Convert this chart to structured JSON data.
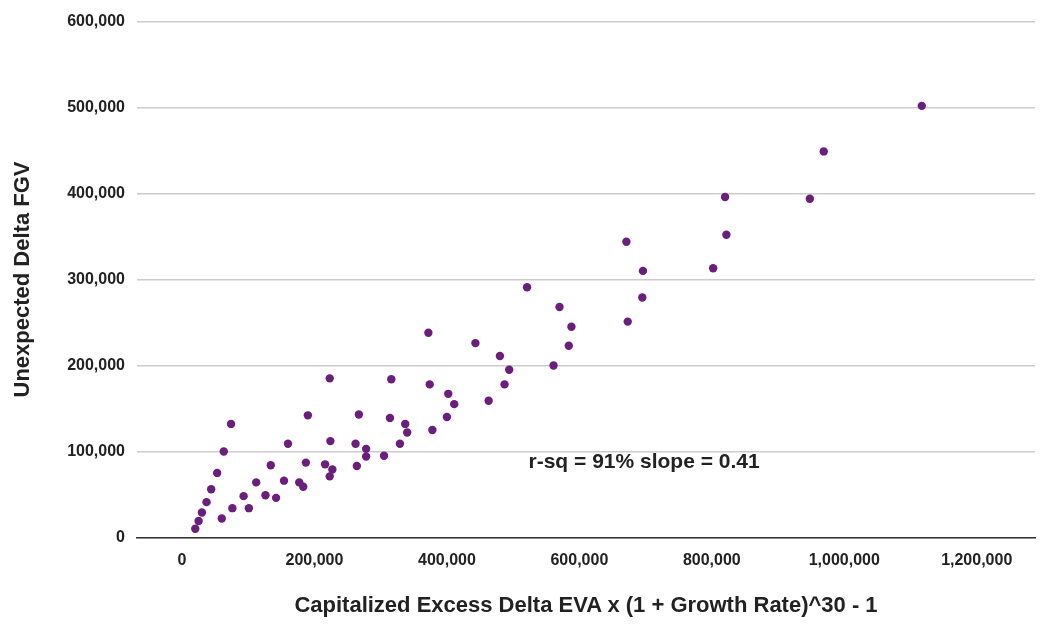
{
  "chart_data": {
    "type": "scatter",
    "xlabel": "Capitalized Excess Delta EVA x (1 + Growth Rate)^30 - 1",
    "ylabel": "Unexpected Delta FGV",
    "annotations": [
      "r-sq = 91% slope = 0.41"
    ],
    "xlim": [
      -68000,
      1288000
    ],
    "xticks": [
      0,
      {
        "value": 200000,
        "label": "200,000"
      },
      {
        "value": 400000,
        "label": "400,000"
      },
      {
        "value": 600000,
        "label": "600,000"
      },
      {
        "value": 800000,
        "label": "800,000"
      },
      {
        "value": 1000000,
        "label": "1,000,000"
      },
      {
        "value": 1200000,
        "label": "1,200,000"
      }
    ],
    "ylim": [
      0,
      600000
    ],
    "yticks": [
      0,
      {
        "value": 100000,
        "label": "100,000"
      },
      {
        "value": 200000,
        "label": "200,000"
      },
      {
        "value": 300000,
        "label": "300,000"
      },
      {
        "value": 400000,
        "label": "400,000"
      },
      {
        "value": 500000,
        "label": "500,000"
      },
      {
        "value": 600000,
        "label": "600,000"
      }
    ],
    "grid": "y",
    "legend": false,
    "marker": "circle",
    "series": [
      {
        "color": "#6b1f7c",
        "x": [
          20000,
          25000,
          30000,
          37000,
          44000,
          53000,
          63000,
          74000,
          60000,
          76000,
          93000,
          101000,
          112000,
          126000,
          134000,
          142000,
          154000,
          160000,
          177000,
          183000,
          187000,
          190000,
          223000,
          224000,
          216000,
          227000,
          223000,
          267000,
          262000,
          264000,
          278000,
          278000,
          305000,
          316000,
          314000,
          329000,
          337000,
          340000,
          372000,
          374000,
          378000,
          402000,
          400000,
          411000,
          443000,
          463000,
          480000,
          487000,
          494000,
          521000,
          561000,
          570000,
          584000,
          588000,
          671000,
          696000,
          695000,
          673000,
          802000,
          822000,
          820000,
          948000,
          969000,
          1117000
        ],
        "values": [
          10000,
          19000,
          29000,
          41000,
          56000,
          75000,
          100000,
          132000,
          22000,
          34000,
          48000,
          34000,
          64000,
          49000,
          84000,
          46000,
          66000,
          109000,
          64000,
          59000,
          87000,
          142000,
          185000,
          112000,
          85000,
          79000,
          71000,
          143000,
          109000,
          83000,
          103000,
          94000,
          95000,
          184000,
          139000,
          109000,
          132000,
          122000,
          238000,
          178000,
          125000,
          167000,
          140000,
          155000,
          226000,
          159000,
          211000,
          178000,
          195000,
          291000,
          200000,
          268000,
          223000,
          245000,
          344000,
          310000,
          279000,
          251000,
          313000,
          352000,
          396000,
          394000,
          449000,
          502000
        ]
      }
    ]
  }
}
